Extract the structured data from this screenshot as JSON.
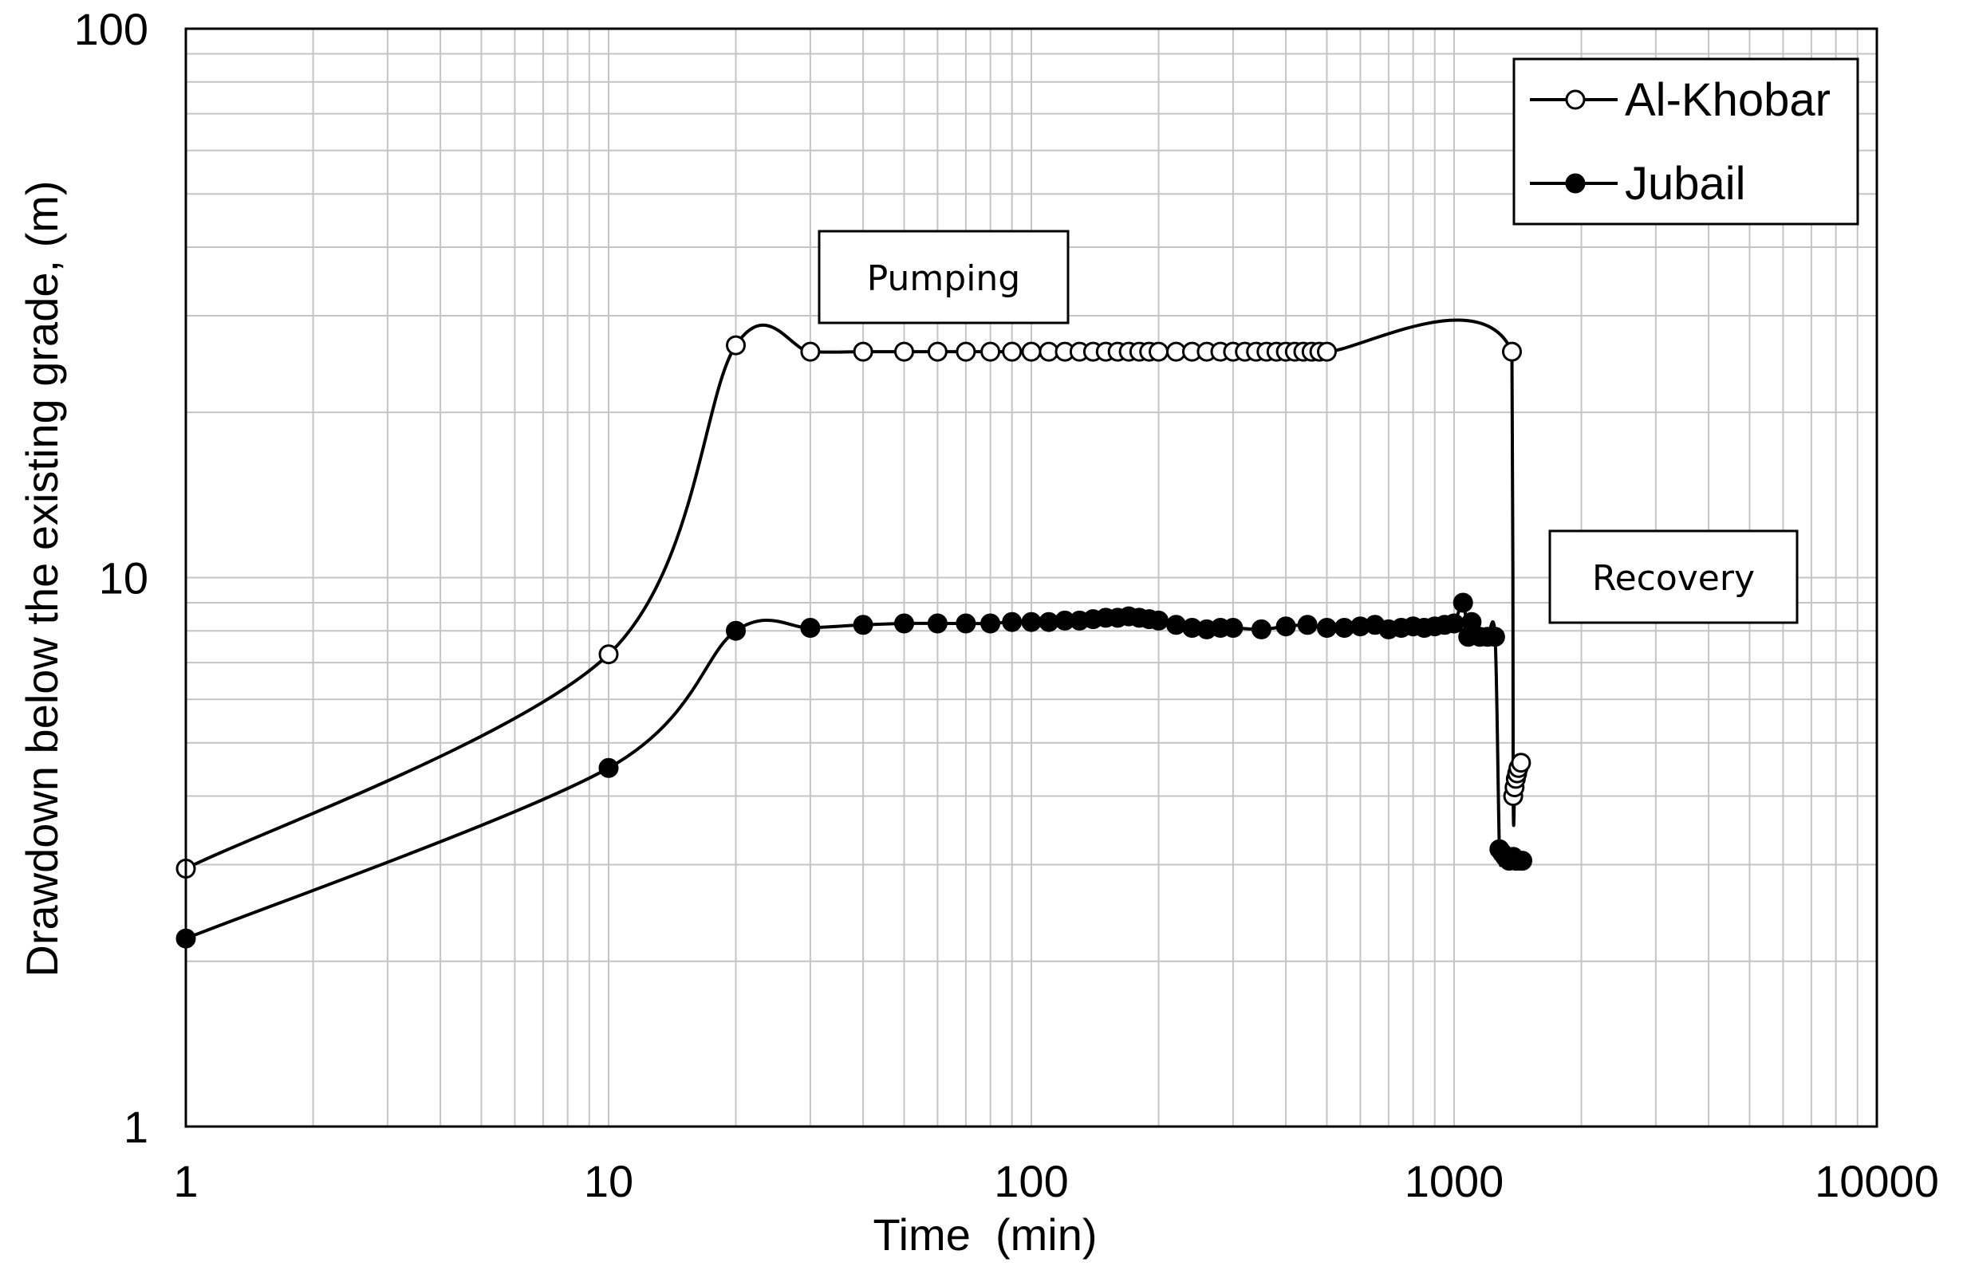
{
  "chart_data": {
    "type": "line",
    "xscale": "log",
    "yscale": "log",
    "xlim": [
      1,
      10000
    ],
    "ylim": [
      1,
      100
    ],
    "x_ticks": [
      "1",
      "10",
      "100",
      "1000",
      "10000"
    ],
    "y_ticks": [
      "1",
      "10",
      "100"
    ],
    "xlabel": "Time  (min)",
    "ylabel": "Drawdown below the existing grade, (m)",
    "grid": true,
    "legend_position": "top-right",
    "annotations": [
      {
        "id": "pumping",
        "text": "Pumping"
      },
      {
        "id": "recovery",
        "text": "Recovery"
      }
    ],
    "series": [
      {
        "name": "Al-Khobar",
        "marker": "open-circle",
        "color": "#000000",
        "x": [
          1,
          10,
          20,
          30,
          40,
          50,
          60,
          70,
          80,
          90,
          100,
          110,
          120,
          130,
          140,
          150,
          160,
          170,
          180,
          190,
          200,
          220,
          240,
          260,
          280,
          300,
          320,
          340,
          360,
          380,
          400,
          420,
          440,
          460,
          480,
          500,
          1370,
          1380,
          1390,
          1400,
          1410,
          1420,
          1440
        ],
        "y": [
          2.95,
          7.25,
          26.5,
          25.8,
          25.8,
          25.8,
          25.8,
          25.8,
          25.8,
          25.8,
          25.8,
          25.8,
          25.8,
          25.8,
          25.8,
          25.8,
          25.8,
          25.8,
          25.8,
          25.8,
          25.8,
          25.8,
          25.8,
          25.8,
          25.8,
          25.8,
          25.8,
          25.8,
          25.8,
          25.8,
          25.8,
          25.8,
          25.8,
          25.8,
          25.8,
          25.8,
          25.8,
          4.0,
          4.15,
          4.3,
          4.4,
          4.5,
          4.6
        ]
      },
      {
        "name": "Jubail",
        "marker": "filled-circle",
        "color": "#000000",
        "x": [
          1,
          10,
          20,
          30,
          40,
          50,
          60,
          70,
          80,
          90,
          100,
          110,
          120,
          130,
          140,
          150,
          160,
          170,
          180,
          190,
          200,
          220,
          240,
          260,
          280,
          300,
          350,
          400,
          450,
          500,
          550,
          600,
          650,
          700,
          750,
          800,
          850,
          900,
          950,
          1000,
          1050,
          1080,
          1100,
          1150,
          1200,
          1250,
          1280,
          1300,
          1320,
          1350,
          1380,
          1400,
          1420,
          1450
        ],
        "y": [
          2.2,
          4.5,
          8.0,
          8.1,
          8.2,
          8.25,
          8.25,
          8.25,
          8.25,
          8.3,
          8.3,
          8.3,
          8.35,
          8.35,
          8.4,
          8.45,
          8.45,
          8.5,
          8.45,
          8.4,
          8.35,
          8.2,
          8.1,
          8.05,
          8.1,
          8.1,
          8.05,
          8.15,
          8.2,
          8.1,
          8.1,
          8.15,
          8.2,
          8.05,
          8.1,
          8.15,
          8.1,
          8.15,
          8.2,
          8.25,
          9.0,
          7.8,
          8.3,
          7.8,
          7.8,
          7.8,
          3.2,
          3.15,
          3.1,
          3.05,
          3.1,
          3.05,
          3.05,
          3.05
        ]
      }
    ]
  }
}
